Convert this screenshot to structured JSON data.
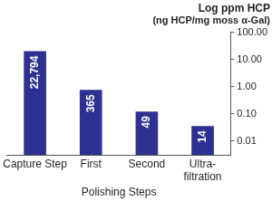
{
  "chart_data": {
    "type": "bar",
    "title": "Log ppm HCP",
    "subtitle": "(ng HCP/mg moss α-Gal)",
    "categories": [
      "Capture Step",
      "First",
      "Second",
      [
        "Ultra-",
        "filtration"
      ]
    ],
    "values": [
      20,
      0.75,
      0.12,
      0.035
    ],
    "color": "#2e3192",
    "log": "y",
    "ylim": [
      0.003,
      100
    ],
    "yticks": [
      {
        "value": 0.01,
        "label": "0.01"
      },
      {
        "value": 0.1,
        "label": "0.10"
      },
      {
        "value": 1,
        "label": "1.00"
      },
      {
        "value": 10,
        "label": "10.00"
      },
      {
        "value": 100,
        "label": "100.00"
      }
    ],
    "grid": false,
    "annotations": [
      {
        "category": "Capture Step",
        "text": "22,794"
      },
      {
        "category": "First",
        "text": "365"
      },
      {
        "category": "Second",
        "text": "49"
      },
      {
        "category": [
          "Ultra-",
          "filtration"
        ],
        "text": "14"
      }
    ],
    "group_labels": [
      {
        "text": "Polishing Steps",
        "categories": [
          "First",
          "Second"
        ]
      }
    ]
  }
}
